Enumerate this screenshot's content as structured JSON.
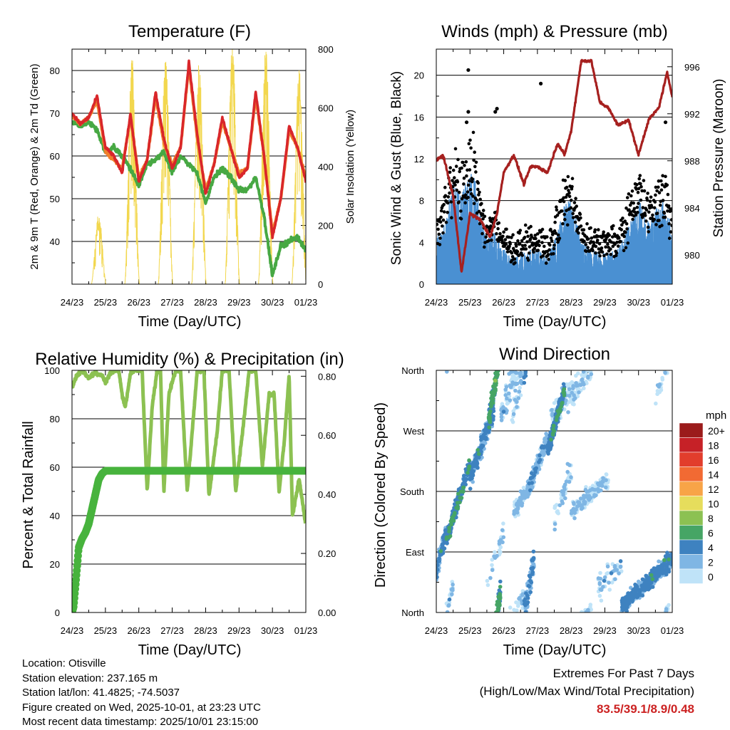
{
  "panels": {
    "temperature": {
      "title": "Temperature (F)",
      "ylabel_left": "2m & 9m T (Red, Orange) & 2m Td (Green)",
      "ylabel_right": "Solar Insolation (Yellow)",
      "xlabel": "Time (Day/UTC)",
      "left_ticks": [
        "40",
        "50",
        "60",
        "70",
        "80"
      ],
      "right_ticks": [
        "0",
        "200",
        "400",
        "600",
        "800"
      ]
    },
    "winds": {
      "title": "Winds (mph) & Pressure (mb)",
      "ylabel_left": "Sonic Wind & Gust (Blue, Black)",
      "ylabel_right": "Station Pressure (Maroon)",
      "xlabel": "Time (Day/UTC)",
      "left_ticks": [
        "0",
        "4",
        "8",
        "12",
        "16",
        "20"
      ],
      "right_ticks": [
        "980",
        "984",
        "988",
        "992",
        "996"
      ]
    },
    "humidity": {
      "title": "Relative Humidity (%) & Precipitation (in)",
      "ylabel_left": "Percent & Total Rainfall",
      "xlabel": "Time (Day/UTC)",
      "left_ticks": [
        "0",
        "20",
        "40",
        "60",
        "80",
        "100"
      ],
      "right_ticks": [
        "0.00",
        "0.20",
        "0.40",
        "0.60",
        "0.80"
      ]
    },
    "direction": {
      "title": "Wind Direction",
      "ylabel_left": "Direction (Colored By Speed)",
      "xlabel": "Time (Day/UTC)",
      "left_ticks": [
        "North",
        "East",
        "South",
        "West",
        "North"
      ],
      "legend_title": "mph",
      "legend_labels": [
        "20+",
        "18",
        "16",
        "14",
        "12",
        "10",
        "8",
        "6",
        "4",
        "2",
        "0"
      ],
      "legend_colors": [
        "#9b1b1b",
        "#c62127",
        "#e23d2c",
        "#f26a33",
        "#f8a447",
        "#e6dd5c",
        "#8cc152",
        "#46a565",
        "#3e82c0",
        "#7fb6e4",
        "#bfe3f8"
      ]
    }
  },
  "x_ticks": [
    "24/23",
    "25/23",
    "26/23",
    "27/23",
    "28/23",
    "29/23",
    "30/23",
    "01/23"
  ],
  "info": {
    "location": "Location: Otisville",
    "elevation": "Station elevation: 237.165 m",
    "latlon": "Station lat/lon: 41.4825; -74.5037",
    "created": "Figure created on Wed, 2025-10-01, at 23:23 UTC",
    "recent": "Most recent data timestamp: 2025/10/01 23:15:00"
  },
  "extremes": {
    "line1": "Extremes For Past 7 Days",
    "line2": "(High/Low/Max Wind/Total Precipitation)",
    "values": "83.5/39.1/8.9/0.48"
  },
  "chart_data": [
    {
      "type": "line",
      "title": "Temperature (F)",
      "x_days": [
        0,
        0.25,
        0.5,
        0.75,
        1,
        1.25,
        1.5,
        1.75,
        2,
        2.25,
        2.5,
        2.75,
        3,
        3.25,
        3.5,
        3.75,
        4,
        4.25,
        4.5,
        4.75,
        5,
        5.25,
        5.5,
        5.75,
        6,
        6.25,
        6.5,
        6.75,
        7
      ],
      "ylim": [
        30,
        85
      ],
      "y2lim": [
        0,
        800
      ],
      "series": [
        {
          "name": "2m T",
          "color": "#d9262a",
          "values": [
            70,
            67.5,
            69,
            74,
            62,
            60,
            56,
            70,
            54,
            59,
            75,
            64,
            57,
            62,
            82,
            65,
            51,
            58,
            69,
            62,
            55,
            57,
            75,
            60,
            41,
            50,
            67,
            62,
            54
          ]
        },
        {
          "name": "9m T",
          "color": "#f0802c",
          "values": [
            69.5,
            67.5,
            69,
            73,
            61,
            59,
            57,
            69,
            55,
            59,
            74,
            63,
            58,
            62,
            81,
            64,
            52,
            58,
            68,
            62,
            56,
            57,
            74,
            60,
            42,
            50,
            66,
            62,
            55
          ]
        },
        {
          "name": "2m Td",
          "color": "#47a843",
          "values": [
            68,
            67,
            68,
            66,
            61,
            62,
            60,
            57,
            53,
            58,
            59,
            61,
            56,
            60,
            58,
            56,
            49,
            55,
            57,
            55,
            52,
            52,
            55,
            46,
            32,
            39,
            40,
            41,
            38
          ]
        },
        {
          "name": "Solar Insolation",
          "axis": "right",
          "color": "#f2d74e",
          "peaks_day": [
            0.8,
            1.8,
            2.8,
            3.8,
            4.8,
            5.8,
            6.8
          ],
          "peaks": [
            240,
            770,
            780,
            780,
            830,
            820,
            730
          ]
        }
      ]
    },
    {
      "type": "scatter",
      "title": "Winds (mph) & Pressure (mb)",
      "ylim": [
        0,
        22
      ],
      "y2lim": [
        977.5,
        997.5
      ],
      "series": [
        {
          "name": "Sonic Wind",
          "color": "#4a90d2",
          "mean_daily": [
            4,
            6,
            2,
            2,
            5,
            2,
            5,
            5
          ]
        },
        {
          "name": "Gust",
          "color": "#000000",
          "max_daily": [
            13,
            20.5,
            9,
            9,
            19,
            8,
            13,
            15.5
          ]
        },
        {
          "name": "Station Pressure",
          "axis": "right",
          "color": "#a6201f",
          "x_days": [
            0,
            0.2,
            0.5,
            0.75,
            1.0,
            1.3,
            1.6,
            1.8,
            2.0,
            2.3,
            2.6,
            2.8,
            3.0,
            3.3,
            3.6,
            3.8,
            4.0,
            4.3,
            4.6,
            4.85,
            5.1,
            5.4,
            5.7,
            6.0,
            6.3,
            6.6,
            6.85,
            7.0
          ],
          "values": [
            988,
            988.5,
            985,
            978.5,
            983.5,
            983,
            981.5,
            983.5,
            987,
            988.5,
            986,
            987.5,
            987.5,
            987,
            989.5,
            988.5,
            990.5,
            996.5,
            996.5,
            993,
            992.5,
            991,
            991.5,
            988.5,
            991.5,
            992.5,
            995.5,
            993.5
          ]
        }
      ]
    },
    {
      "type": "line",
      "title": "Relative Humidity (%) & Precipitation (in)",
      "ylim": [
        0,
        100
      ],
      "y2lim": [
        0,
        0.82
      ],
      "series": [
        {
          "name": "Relative Humidity",
          "color": "#8cc152",
          "x_days": [
            0,
            0.15,
            0.3,
            0.5,
            0.7,
            0.9,
            1.0,
            1.2,
            1.4,
            1.5,
            1.6,
            1.75,
            1.9,
            2.1,
            2.25,
            2.4,
            2.55,
            2.65,
            2.75,
            2.9,
            3.1,
            3.25,
            3.45,
            3.6,
            3.75,
            3.95,
            4.1,
            4.35,
            4.5,
            4.7,
            4.9,
            5.15,
            5.3,
            5.5,
            5.7,
            5.9,
            6.05,
            6.2,
            6.35,
            6.5,
            6.6,
            6.8,
            7.0
          ],
          "values": [
            93,
            98,
            100,
            97,
            99,
            98,
            95,
            100,
            100,
            90,
            85,
            99,
            100,
            100,
            50,
            85,
            100,
            100,
            50,
            90,
            100,
            100,
            50,
            75,
            100,
            100,
            48,
            75,
            100,
            100,
            50,
            80,
            100,
            100,
            60,
            90,
            90,
            50,
            70,
            98,
            40,
            55,
            36
          ]
        },
        {
          "name": "Total Rainfall",
          "axis": "right",
          "color": "#47b33d",
          "x_days": [
            0,
            0.05,
            0.15,
            0.2,
            0.3,
            0.4,
            0.5,
            0.6,
            0.7,
            0.8,
            0.9,
            1.0,
            7.0
          ],
          "values": [
            0,
            0.02,
            0.15,
            0.22,
            0.25,
            0.27,
            0.3,
            0.35,
            0.4,
            0.45,
            0.47,
            0.48,
            0.48
          ]
        }
      ]
    },
    {
      "type": "scatter",
      "title": "Wind Direction",
      "y_categories": [
        "North",
        "East",
        "South",
        "West",
        "North"
      ],
      "colored_by": "speed (mph)"
    }
  ]
}
